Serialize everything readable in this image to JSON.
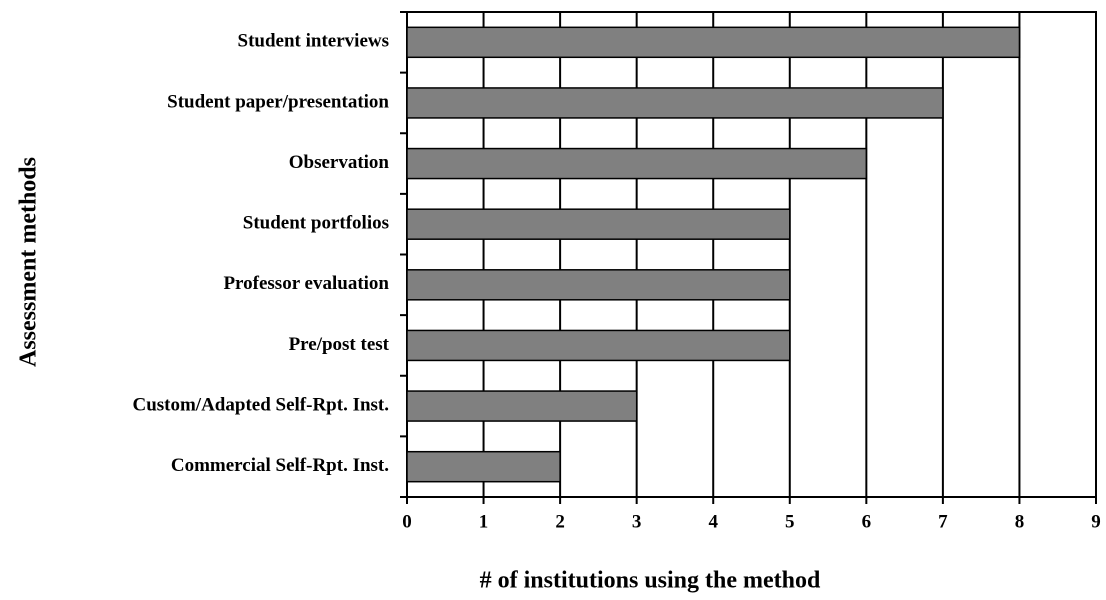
{
  "chart_data": {
    "type": "barh",
    "xlabel": "# of institutions using the method",
    "ylabel": "Assessment methods",
    "categories": [
      "Student interviews",
      "Student paper/presentation",
      "Observation",
      "Student portfolios",
      "Professor evaluation",
      "Pre/post test",
      "Custom/Adapted Self-Rpt. Inst.",
      "Commercial Self-Rpt. Inst."
    ],
    "values": [
      8,
      7,
      6,
      5,
      5,
      5,
      3,
      2
    ],
    "color": "#808080",
    "xlim": [
      0,
      9
    ],
    "xticks": [
      0,
      1,
      2,
      3,
      4,
      5,
      6,
      7,
      8,
      9
    ],
    "grid": true
  }
}
